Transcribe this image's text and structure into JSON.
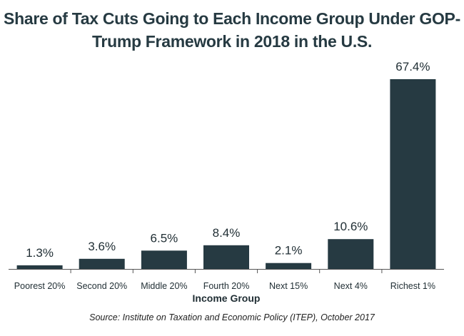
{
  "chart_data": {
    "type": "bar",
    "title_lines": [
      "Share of Tax Cuts Going to Each Income Group Under GOP-",
      "Trump Framework in 2018 in the U.S."
    ],
    "categories": [
      "Poorest 20%",
      "Second 20%",
      "Middle 20%",
      "Fourth 20%",
      "Next 15%",
      "Next 4%",
      "Richest 1%"
    ],
    "values": [
      1.3,
      3.6,
      6.5,
      8.4,
      2.1,
      10.6,
      67.4
    ],
    "value_labels": [
      "1.3%",
      "3.6%",
      "6.5%",
      "8.4%",
      "2.1%",
      "10.6%",
      "67.4%"
    ],
    "xlabel": "Income Group",
    "ylabel": "",
    "ylim": [
      0,
      70
    ],
    "grid": false,
    "legend": "none",
    "source": "Source: Institute on Taxation and Economic Policy (ITEP), October 2017",
    "colors": {
      "bar": "#263a42",
      "title": "#263a42",
      "text": "#1f2d33",
      "axis": "#555555"
    }
  }
}
